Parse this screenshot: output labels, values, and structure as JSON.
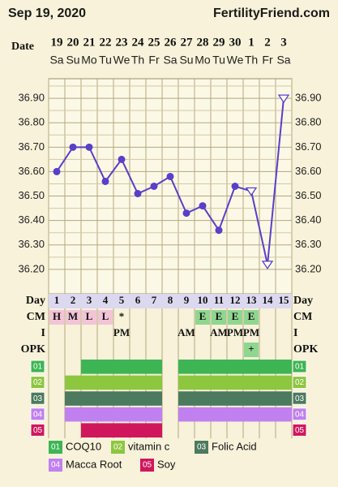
{
  "header": {
    "date": "Sep 19, 2020",
    "site": "FertilityFriend.com"
  },
  "chart_data": {
    "type": "line",
    "x_label": "Date",
    "categories": [
      "19",
      "20",
      "21",
      "22",
      "23",
      "24",
      "25",
      "26",
      "27",
      "28",
      "29",
      "30",
      "1",
      "2",
      "3"
    ],
    "weekdays": [
      "Sa",
      "Su",
      "Mo",
      "Tu",
      "We",
      "Th",
      "Fr",
      "Sa",
      "Su",
      "Mo",
      "Tu",
      "We",
      "Th",
      "Fr",
      "Sa"
    ],
    "values": [
      36.6,
      36.7,
      36.7,
      36.56,
      36.65,
      36.51,
      36.54,
      36.58,
      36.43,
      36.46,
      36.36,
      36.54,
      36.52,
      36.22,
      36.9
    ],
    "hollow": [
      false,
      false,
      false,
      false,
      false,
      false,
      false,
      false,
      false,
      false,
      false,
      false,
      true,
      true,
      true
    ],
    "color": "#5a3fc8",
    "ylim": [
      36.1,
      36.98
    ],
    "yticks": [
      {
        "value": 36.2,
        "label": "36.20"
      },
      {
        "value": 36.3,
        "label": "36.30"
      },
      {
        "value": 36.4,
        "label": "36.40"
      },
      {
        "value": 36.5,
        "label": "36.50"
      },
      {
        "value": 36.6,
        "label": "36.60"
      },
      {
        "value": 36.7,
        "label": "36.70"
      },
      {
        "value": 36.8,
        "label": "36.80"
      },
      {
        "value": 36.9,
        "label": "36.90"
      }
    ],
    "grid": true,
    "day_row": {
      "label": "Day",
      "values": [
        1,
        2,
        3,
        4,
        5,
        6,
        7,
        8,
        9,
        10,
        11,
        12,
        13,
        14,
        15
      ]
    },
    "cm_row": {
      "label": "CM",
      "entries": [
        "H",
        "M",
        "L",
        "L",
        "*",
        null,
        null,
        null,
        null,
        "E",
        "E",
        "E",
        "E",
        null,
        null
      ],
      "colors": [
        "#f2c4d6",
        "#f2c4d6",
        "#f2c4d6",
        "#f2c4d6",
        null,
        null,
        null,
        null,
        null,
        "#8fd68f",
        "#8fd68f",
        "#8fd68f",
        "#8fd68f",
        null,
        null
      ]
    },
    "i_row": {
      "label": "I",
      "entries": [
        null,
        null,
        null,
        null,
        "PM",
        null,
        null,
        null,
        "AM",
        null,
        "AM",
        "PM",
        "PM",
        null,
        null
      ]
    },
    "opk_row": {
      "label": "OPK",
      "entries": [
        null,
        null,
        null,
        null,
        null,
        null,
        null,
        null,
        null,
        null,
        null,
        null,
        "+",
        null,
        null
      ],
      "colors": [
        null,
        null,
        null,
        null,
        null,
        null,
        null,
        null,
        null,
        null,
        null,
        null,
        "#8fd68f",
        null,
        null
      ]
    },
    "supplements": [
      {
        "code": "01",
        "name": "COQ10",
        "color": "#3db554",
        "days": [
          0,
          0,
          1,
          1,
          1,
          1,
          1,
          0,
          1,
          1,
          1,
          1,
          1,
          1,
          1
        ]
      },
      {
        "code": "02",
        "name": "vitamin c",
        "color": "#8dc63f",
        "days": [
          0,
          1,
          1,
          1,
          1,
          1,
          1,
          0,
          1,
          1,
          1,
          1,
          1,
          1,
          1
        ]
      },
      {
        "code": "03",
        "name": "Folic Acid",
        "color": "#4c7a5e",
        "days": [
          0,
          1,
          1,
          1,
          1,
          1,
          1,
          0,
          1,
          1,
          1,
          1,
          1,
          1,
          1
        ]
      },
      {
        "code": "04",
        "name": "Macca Root",
        "color": "#c080f0",
        "days": [
          0,
          1,
          1,
          1,
          1,
          1,
          1,
          0,
          1,
          1,
          1,
          1,
          1,
          1,
          1
        ]
      },
      {
        "code": "05",
        "name": "Soy",
        "color": "#d0175e",
        "days": [
          0,
          0,
          1,
          1,
          1,
          1,
          1,
          0,
          0,
          0,
          0,
          0,
          0,
          0,
          0
        ]
      }
    ]
  }
}
